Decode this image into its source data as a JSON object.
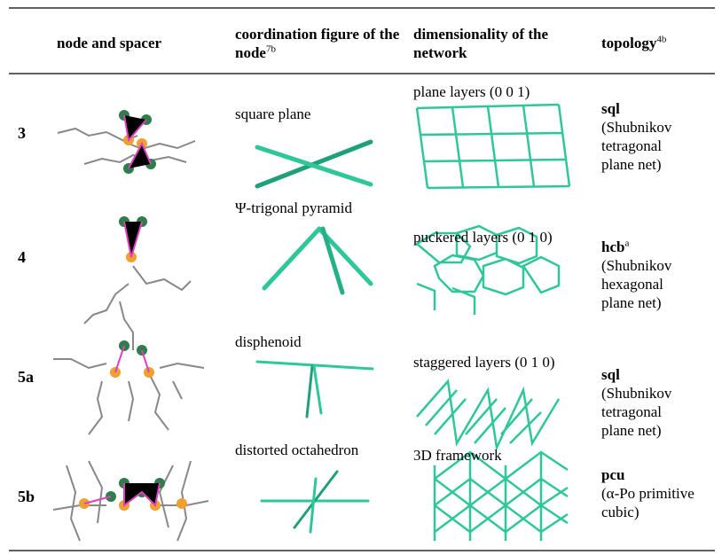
{
  "table": {
    "header": [
      {
        "text": "node and spacer"
      },
      {
        "text": "coordination figure of the node",
        "sup": "7b"
      },
      {
        "text": "dimensionality of the network"
      },
      {
        "text": "topology",
        "sup": "4b"
      }
    ],
    "rows": [
      {
        "compound": "3",
        "coordination": "square plane",
        "dimensionality": "plane layers (0 0 1)",
        "topology": "sql",
        "topology_note": "(Shubnikov tetragonal plane net)"
      },
      {
        "compound": "4",
        "coordination": "Ψ-trigonal pyramid",
        "dimensionality": "puckered layers (0 1 0)",
        "topology": "hcb",
        "topology_sup": "a",
        "topology_note": "(Shubnikov hexagonal plane net)"
      },
      {
        "compound": "5a",
        "coordination": "disphenoid",
        "dimensionality": "staggered layers (0 1 0)",
        "topology": "sql",
        "topology_note": "(Shubnikov tetragonal plane net)"
      },
      {
        "compound": "5b",
        "coordination": "distorted octahedron",
        "dimensionality": "3D framework",
        "topology": "pcu",
        "topology_note": "(α-Po primitive cubic)"
      }
    ]
  }
}
